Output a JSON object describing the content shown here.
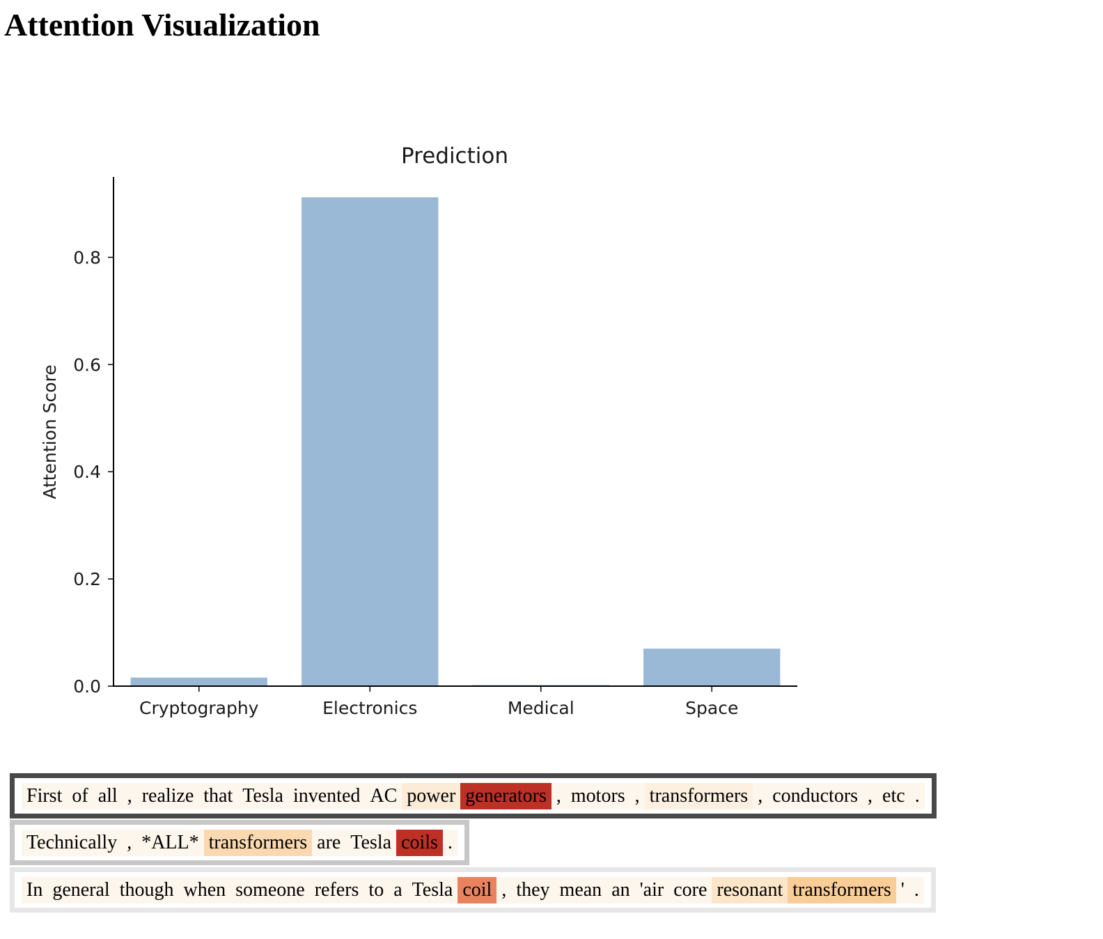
{
  "page": {
    "title": "Attention Visualization"
  },
  "chart_data": {
    "type": "bar",
    "title": "Prediction",
    "xlabel": "",
    "ylabel": "Attention Score",
    "categories": [
      "Cryptography",
      "Electronics",
      "Medical",
      "Space"
    ],
    "values": [
      0.016,
      0.912,
      0.002,
      0.07
    ],
    "ylim": [
      0,
      0.95
    ],
    "yticks": [
      0.0,
      0.2,
      0.4,
      0.6,
      0.8
    ],
    "ytick_labels": [
      "0.0",
      "0.2",
      "0.4",
      "0.6",
      "0.8"
    ],
    "bar_color": "#9ab9d6",
    "grid": false
  },
  "sentences": [
    {
      "border_color": "#484848",
      "tokens": [
        {
          "text": "First",
          "color": "#fdf6ec"
        },
        {
          "text": "of",
          "color": "#fdf6ec"
        },
        {
          "text": "all",
          "color": "#fdf6ec"
        },
        {
          "text": ",",
          "color": "#fdf6ec"
        },
        {
          "text": "realize",
          "color": "#fdf6ec"
        },
        {
          "text": "that",
          "color": "#fdf6ec"
        },
        {
          "text": "Tesla",
          "color": "#fdf6ec"
        },
        {
          "text": "invented",
          "color": "#fdf6ec"
        },
        {
          "text": "AC",
          "color": "#fdf6ec"
        },
        {
          "text": "power",
          "color": "#fcebd6"
        },
        {
          "text": "generators",
          "color": "#bd3026"
        },
        {
          "text": ",",
          "color": "#fdf6ec"
        },
        {
          "text": "motors",
          "color": "#fdf6ec"
        },
        {
          "text": ",",
          "color": "#fdf6ec"
        },
        {
          "text": "transformers",
          "color": "#fdf0e1"
        },
        {
          "text": ",",
          "color": "#fdf6ec"
        },
        {
          "text": "conductors",
          "color": "#fdf6ec"
        },
        {
          "text": ",",
          "color": "#fdf6ec"
        },
        {
          "text": "etc",
          "color": "#fdf6ec"
        },
        {
          "text": ".",
          "color": "#fdf6ec"
        }
      ]
    },
    {
      "border_color": "#c7c7c7",
      "tokens": [
        {
          "text": "Technically",
          "color": "#fdf6ec"
        },
        {
          "text": ",",
          "color": "#fdf6ec"
        },
        {
          "text": "*ALL*",
          "color": "#fdf6ec"
        },
        {
          "text": "transformers",
          "color": "#fad9b1"
        },
        {
          "text": "are",
          "color": "#fdf6ec"
        },
        {
          "text": "Tesla",
          "color": "#fdf6ec"
        },
        {
          "text": "coils",
          "color": "#bd3026"
        },
        {
          "text": ".",
          "color": "#fdf6ec"
        }
      ]
    },
    {
      "border_color": "#e6e6e6",
      "tokens": [
        {
          "text": "In",
          "color": "#fdf6ec"
        },
        {
          "text": "general",
          "color": "#fdf6ec"
        },
        {
          "text": "though",
          "color": "#fdf6ec"
        },
        {
          "text": "when",
          "color": "#fdf6ec"
        },
        {
          "text": "someone",
          "color": "#fdf6ec"
        },
        {
          "text": "refers",
          "color": "#fdf6ec"
        },
        {
          "text": "to",
          "color": "#fdf6ec"
        },
        {
          "text": "a",
          "color": "#fdf6ec"
        },
        {
          "text": "Tesla",
          "color": "#fdf6ec"
        },
        {
          "text": "coil",
          "color": "#e9835f"
        },
        {
          "text": ",",
          "color": "#fdf6ec"
        },
        {
          "text": "they",
          "color": "#fdf6ec"
        },
        {
          "text": "mean",
          "color": "#fdf6ec"
        },
        {
          "text": "an",
          "color": "#fdf6ec"
        },
        {
          "text": "'air",
          "color": "#fdf6ec"
        },
        {
          "text": "core",
          "color": "#fdf6ec"
        },
        {
          "text": "resonant",
          "color": "#fce6c9"
        },
        {
          "text": "transformers",
          "color": "#f8cd98"
        },
        {
          "text": "'",
          "color": "#fdf6ec"
        },
        {
          "text": ".",
          "color": "#fdf6ec"
        }
      ]
    }
  ]
}
